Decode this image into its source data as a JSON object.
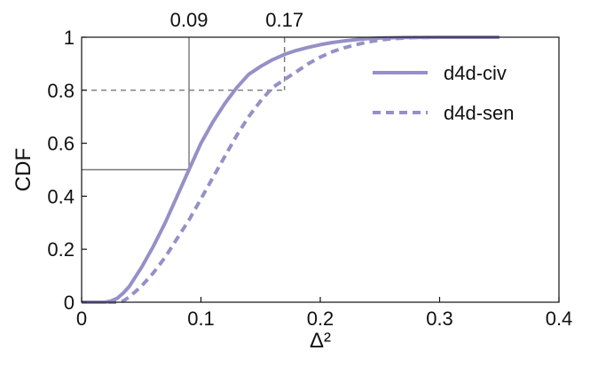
{
  "chart_data": {
    "type": "line",
    "title": "",
    "xlabel": "Δ²",
    "ylabel": "CDF",
    "xlim": [
      0,
      0.4
    ],
    "ylim": [
      0,
      1
    ],
    "xticks": [
      "0",
      "0.1",
      "0.2",
      "0.3",
      "0.4"
    ],
    "yticks": [
      "0",
      "0.2",
      "0.4",
      "0.6",
      "0.8",
      "1"
    ],
    "grid": false,
    "legend_position": "top-right",
    "series": [
      {
        "name": "d4d-civ",
        "style": "solid",
        "color": "#9590c7",
        "x": [
          0,
          0.02,
          0.025,
          0.03,
          0.035,
          0.04,
          0.05,
          0.06,
          0.07,
          0.08,
          0.09,
          0.1,
          0.11,
          0.12,
          0.13,
          0.14,
          0.15,
          0.16,
          0.17,
          0.18,
          0.19,
          0.2,
          0.21,
          0.22,
          0.23,
          0.24,
          0.25,
          0.27,
          0.3,
          0.35
        ],
        "y": [
          0,
          0.0,
          0.005,
          0.015,
          0.035,
          0.06,
          0.13,
          0.21,
          0.3,
          0.4,
          0.5,
          0.6,
          0.68,
          0.75,
          0.81,
          0.86,
          0.89,
          0.915,
          0.935,
          0.95,
          0.962,
          0.972,
          0.98,
          0.986,
          0.991,
          0.995,
          0.997,
          0.999,
          1.0,
          1.0
        ]
      },
      {
        "name": "d4d-sen",
        "style": "dashed",
        "color": "#9590c7",
        "x": [
          0,
          0.03,
          0.035,
          0.04,
          0.05,
          0.06,
          0.07,
          0.08,
          0.09,
          0.1,
          0.11,
          0.12,
          0.13,
          0.14,
          0.15,
          0.16,
          0.17,
          0.18,
          0.19,
          0.2,
          0.21,
          0.22,
          0.23,
          0.24,
          0.25,
          0.26,
          0.27,
          0.28,
          0.3,
          0.35
        ],
        "y": [
          0,
          0.0,
          0.005,
          0.02,
          0.06,
          0.11,
          0.17,
          0.24,
          0.31,
          0.39,
          0.47,
          0.55,
          0.63,
          0.7,
          0.76,
          0.81,
          0.84,
          0.87,
          0.9,
          0.925,
          0.945,
          0.96,
          0.972,
          0.982,
          0.99,
          0.994,
          0.997,
          0.999,
          1.0,
          1.0
        ]
      }
    ],
    "annotations": [
      {
        "label": "0.09",
        "x": 0.09,
        "y": 0.5,
        "style": "solid"
      },
      {
        "label": "0.17",
        "x": 0.17,
        "y": 0.8,
        "style": "dashed"
      }
    ]
  }
}
